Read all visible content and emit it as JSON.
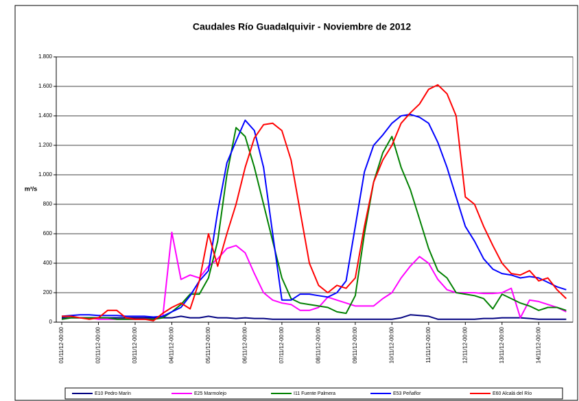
{
  "chart_data": {
    "type": "line",
    "title": "Caudales Río Guadalquivir - Noviembre de 2012",
    "y_label": "m³/s",
    "x": [
      0,
      0.25,
      0.5,
      0.75,
      1,
      1.25,
      1.5,
      1.75,
      2,
      2.25,
      2.5,
      2.75,
      3,
      3.25,
      3.5,
      3.75,
      4,
      4.25,
      4.5,
      4.75,
      5,
      5.25,
      5.5,
      5.75,
      6,
      6.25,
      6.5,
      6.75,
      7,
      7.25,
      7.5,
      7.75,
      8,
      8.25,
      8.5,
      8.75,
      9,
      9.25,
      9.5,
      9.75,
      10,
      10.25,
      10.5,
      10.75,
      11,
      11.25,
      11.5,
      11.75,
      12,
      12.25,
      12.5,
      12.75,
      13,
      13.25,
      13.5,
      13.75
    ],
    "xlim": [
      -0.15,
      13.93
    ],
    "xticks": [
      {
        "value": 0,
        "label": "01/11/12-00:00"
      },
      {
        "value": 1,
        "label": "02/11/12-00:00"
      },
      {
        "value": 2,
        "label": "03/11/12-00:00"
      },
      {
        "value": 3,
        "label": "04/11/12-00:00"
      },
      {
        "value": 4,
        "label": "05/11/12-00:00"
      },
      {
        "value": 5,
        "label": "06/11/12-00:00"
      },
      {
        "value": 6,
        "label": "07/11/12-00:00"
      },
      {
        "value": 7,
        "label": "08/11/12-00:00"
      },
      {
        "value": 8,
        "label": "09/11/12-00:00"
      },
      {
        "value": 9,
        "label": "10/11/12-00:00"
      },
      {
        "value": 10,
        "label": "11/11/12-00:00"
      },
      {
        "value": 11,
        "label": "12/11/12-00:00"
      },
      {
        "value": 12,
        "label": "13/11/12-00:00"
      },
      {
        "value": 13,
        "label": "14/11/12-00:00"
      }
    ],
    "ylim": [
      0,
      1800
    ],
    "yticks": [
      0,
      200,
      400,
      600,
      800,
      {
        "value": 1000,
        "label": "1.000"
      },
      {
        "value": 1200,
        "label": "1.200"
      },
      {
        "value": 1400,
        "label": "1.400"
      },
      {
        "value": 1600,
        "label": "1.600"
      },
      {
        "value": 1800,
        "label": "1.800"
      }
    ],
    "grid": true,
    "legend": "bottom",
    "series": [
      {
        "name": "E10 Pedro Marín",
        "color": "#000080",
        "values": [
          30,
          30,
          30,
          30,
          30,
          30,
          30,
          30,
          30,
          30,
          30,
          30,
          30,
          40,
          30,
          30,
          40,
          30,
          30,
          25,
          30,
          25,
          25,
          20,
          20,
          20,
          20,
          20,
          20,
          20,
          20,
          20,
          20,
          20,
          20,
          20,
          20,
          30,
          50,
          45,
          40,
          20,
          20,
          20,
          20,
          20,
          25,
          25,
          30,
          30,
          30,
          25,
          20,
          20,
          20,
          20
        ]
      },
      {
        "name": "E25 Marmolejo",
        "color": "#ff00ff",
        "values": [
          20,
          30,
          30,
          30,
          20,
          20,
          20,
          20,
          20,
          20,
          20,
          30,
          610,
          290,
          320,
          300,
          380,
          430,
          500,
          520,
          470,
          330,
          200,
          150,
          130,
          120,
          80,
          80,
          100,
          170,
          150,
          130,
          110,
          110,
          110,
          160,
          200,
          300,
          380,
          445,
          400,
          290,
          220,
          200,
          200,
          200,
          195,
          195,
          200,
          230,
          30,
          150,
          140,
          120,
          100,
          70
        ]
      },
      {
        "name": "I11 Fuente Palmera",
        "color": "#008000",
        "values": [
          20,
          30,
          30,
          30,
          30,
          30,
          20,
          20,
          20,
          20,
          20,
          30,
          70,
          120,
          190,
          190,
          300,
          550,
          1000,
          1320,
          1260,
          1050,
          800,
          550,
          300,
          160,
          130,
          120,
          110,
          100,
          70,
          60,
          180,
          600,
          950,
          1150,
          1260,
          1050,
          900,
          700,
          500,
          350,
          300,
          200,
          190,
          180,
          160,
          90,
          190,
          160,
          130,
          110,
          80,
          100,
          100,
          80
        ]
      },
      {
        "name": "E53 Peñaflor",
        "color": "#0000ff",
        "values": [
          40,
          45,
          50,
          50,
          45,
          45,
          45,
          40,
          40,
          40,
          35,
          40,
          70,
          100,
          180,
          280,
          350,
          750,
          1080,
          1230,
          1370,
          1300,
          1050,
          600,
          150,
          150,
          190,
          190,
          180,
          170,
          200,
          280,
          650,
          1020,
          1200,
          1270,
          1350,
          1400,
          1410,
          1390,
          1350,
          1220,
          1050,
          850,
          650,
          550,
          430,
          360,
          330,
          320,
          300,
          310,
          300,
          270,
          240,
          220
        ]
      },
      {
        "name": "E60 Alcalá del Río",
        "color": "#ff0000",
        "values": [
          40,
          40,
          30,
          20,
          30,
          80,
          80,
          30,
          20,
          20,
          10,
          60,
          100,
          130,
          90,
          280,
          600,
          380,
          600,
          800,
          1050,
          1250,
          1340,
          1350,
          1300,
          1100,
          750,
          400,
          250,
          200,
          250,
          230,
          300,
          650,
          950,
          1100,
          1200,
          1350,
          1420,
          1480,
          1580,
          1610,
          1550,
          1400,
          850,
          800,
          650,
          520,
          400,
          330,
          320,
          350,
          280,
          300,
          220,
          160
        ]
      }
    ]
  }
}
